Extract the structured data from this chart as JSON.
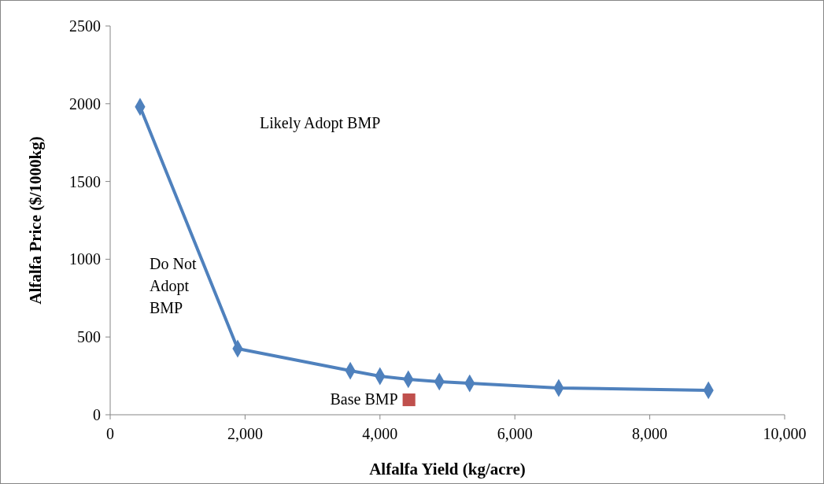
{
  "chart_data": {
    "type": "line",
    "xlabel": "Alfalfa Yield (kg/acre)",
    "ylabel": "Alfalfa Price ($/1000kg)",
    "xlim": [
      0,
      10000
    ],
    "xticks": [
      0,
      {
        "value": 2000,
        "label": "2,000"
      },
      {
        "value": 4000,
        "label": "4,000"
      },
      {
        "value": 6000,
        "label": "6,000"
      },
      {
        "value": 8000,
        "label": "8,000"
      },
      {
        "value": 10000,
        "label": "10,000"
      }
    ],
    "ylim": [
      0,
      2500
    ],
    "yticks": [
      0,
      500,
      1000,
      1500,
      2000,
      2500
    ],
    "grid": false,
    "annotations": [
      "Likely Adopt BMP",
      "Do Not\nAdopt\nBMP"
    ],
    "series": [
      {
        "color": "#4f81bd",
        "marker": "diamond",
        "line_style": "solid",
        "x": [
          443,
          1890,
          3560,
          4000,
          4420,
          4880,
          5330,
          6650,
          8870
        ],
        "values": [
          1980,
          425,
          283,
          248,
          228,
          213,
          202,
          172,
          157
        ]
      },
      {
        "type": "scatter",
        "name": "Base BMP",
        "color": "#c0504d",
        "marker": "square",
        "x": [
          4430
        ],
        "values": [
          96
        ]
      }
    ]
  }
}
